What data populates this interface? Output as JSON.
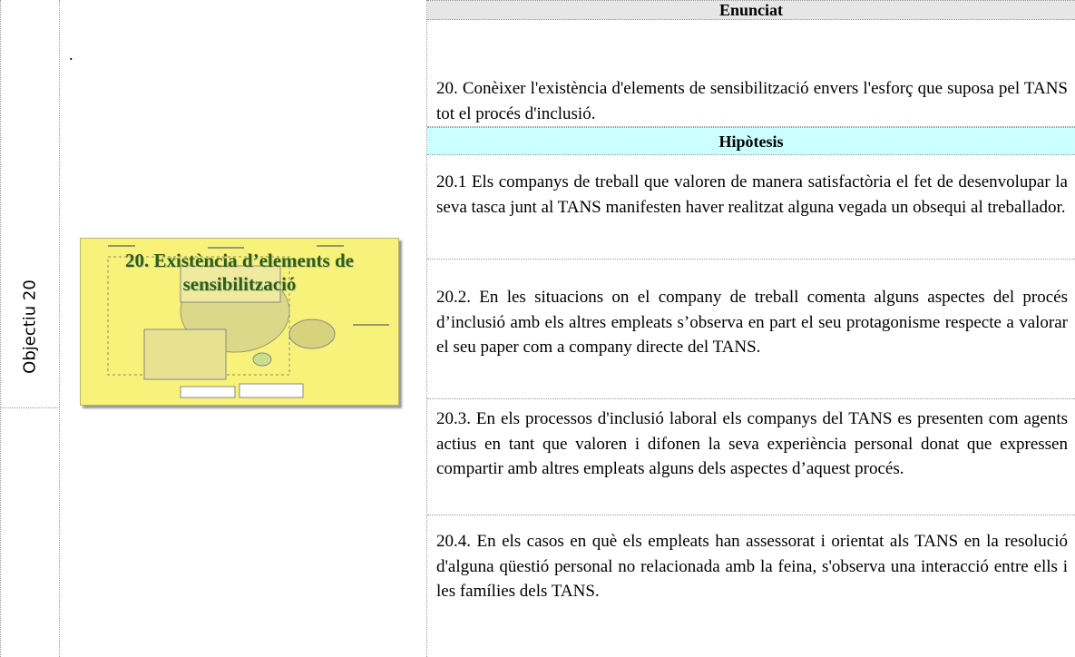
{
  "objective_label": "Objectiu 20",
  "left_note": ".",
  "thumbnail_title": "20. Existència d’elements de sensibilització",
  "statement_header": "Enunciat",
  "statement": "20. Conèixer l'existència d'elements de sensibilització envers l'esforç que suposa pel TANS tot el procés d'inclusió.",
  "hypotheses_header": "Hipòtesis",
  "hypotheses": [
    "20.1 Els companys de treball que valoren de manera satisfactòria el fet de desenvolupar la seva tasca junt al TANS manifesten haver realitzat alguna vegada un obsequi al treballador.",
    "20.2. En les situacions on el company de treball comenta alguns aspectes del procés d’inclusió amb els altres empleats s’observa en part el seu protagonisme respecte a valorar el seu paper com a company directe del TANS.",
    "20.3. En els processos d'inclusió laboral els companys del TANS es presenten com agents actius en tant que valoren i difonen la seva experiència personal donat que expressen compartir amb altres empleats alguns dels aspectes d’aquest procés.",
    "20.4. En els casos en què els empleats han assessorat i orientat als TANS en la resolució d'alguna qüestió personal no relacionada amb la feina, s'observa una interacció entre ells i les famílies dels TANS."
  ]
}
